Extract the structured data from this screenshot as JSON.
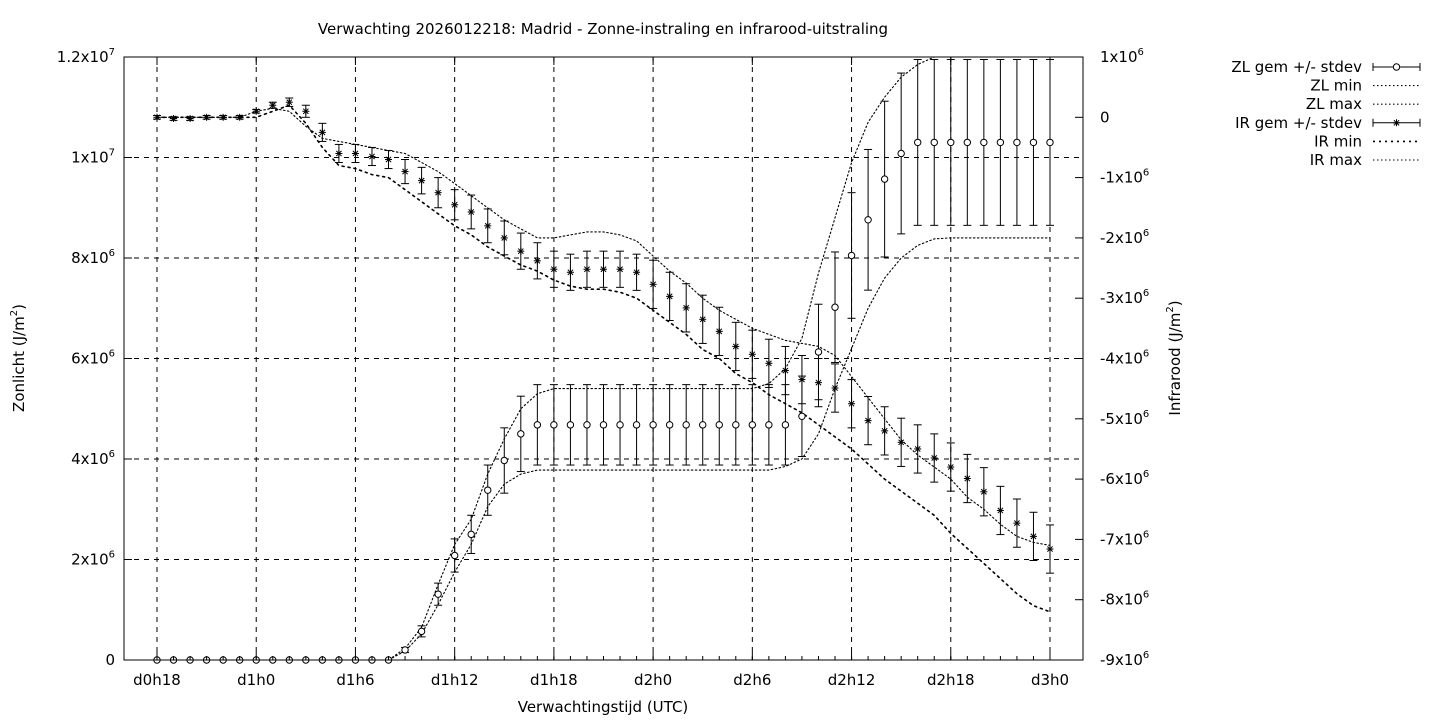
{
  "chart_data": {
    "type": "scatter",
    "title": "Verwachting 2026012218: Madrid - Zonne-instraling en infrarood-uitstraling",
    "xlabel": "Verwachtingstijd (UTC)",
    "ylabel_left": "Zonlicht (J/m",
    "ylabel_left_sup": "2",
    "ylabel_left_end": ")",
    "ylabel_right": "Infrarood (J/m",
    "ylabel_right_sup": "2",
    "ylabel_right_end": ")",
    "grid": true,
    "legend_position": "outside-top-right",
    "x_hours": [
      18,
      19,
      20,
      21,
      22,
      23,
      24,
      25,
      26,
      27,
      28,
      29,
      30,
      31,
      32,
      33,
      34,
      35,
      36,
      37,
      38,
      39,
      40,
      41,
      42,
      43,
      44,
      45,
      46,
      47,
      48,
      49,
      50,
      51,
      52,
      53,
      54,
      55,
      56,
      57,
      58,
      59,
      60,
      61,
      62,
      63,
      64,
      65,
      66,
      67,
      68,
      69,
      70,
      71,
      72
    ],
    "xlim_hours": [
      16,
      74
    ],
    "x_ticks": [
      {
        "h": 18,
        "label": "d0h18"
      },
      {
        "h": 24,
        "label": "d1h0"
      },
      {
        "h": 30,
        "label": "d1h6"
      },
      {
        "h": 36,
        "label": "d1h12"
      },
      {
        "h": 42,
        "label": "d1h18"
      },
      {
        "h": 48,
        "label": "d2h0"
      },
      {
        "h": 54,
        "label": "d2h6"
      },
      {
        "h": 60,
        "label": "d2h12"
      },
      {
        "h": 66,
        "label": "d2h18"
      },
      {
        "h": 72,
        "label": "d3h0"
      }
    ],
    "y_left": {
      "lim": [
        0,
        12000000
      ],
      "ticks": [
        {
          "v": 0,
          "base": "0",
          "exp": ""
        },
        {
          "v": 2000000,
          "base": "2x10",
          "exp": "6"
        },
        {
          "v": 4000000,
          "base": "4x10",
          "exp": "6"
        },
        {
          "v": 6000000,
          "base": "6x10",
          "exp": "6"
        },
        {
          "v": 8000000,
          "base": "8x10",
          "exp": "6"
        },
        {
          "v": 10000000,
          "base": "1x10",
          "exp": "7"
        },
        {
          "v": 12000000,
          "base": "1.2x10",
          "exp": "7"
        }
      ]
    },
    "y_right": {
      "lim": [
        -9000000,
        1000000
      ],
      "ticks": [
        {
          "v": 1000000,
          "base": "1x10",
          "exp": "6"
        },
        {
          "v": 0,
          "base": "0",
          "exp": ""
        },
        {
          "v": -1000000,
          "base": "-1x10",
          "exp": "6"
        },
        {
          "v": -2000000,
          "base": "-2x10",
          "exp": "6"
        },
        {
          "v": -3000000,
          "base": "-3x10",
          "exp": "6"
        },
        {
          "v": -4000000,
          "base": "-4x10",
          "exp": "6"
        },
        {
          "v": -5000000,
          "base": "-5x10",
          "exp": "6"
        },
        {
          "v": -6000000,
          "base": "-6x10",
          "exp": "6"
        },
        {
          "v": -7000000,
          "base": "-7x10",
          "exp": "6"
        },
        {
          "v": -8000000,
          "base": "-8x10",
          "exp": "6"
        },
        {
          "v": -9000000,
          "base": "-9x10",
          "exp": "6"
        }
      ]
    },
    "legend": [
      {
        "key": "zl_mean",
        "label": "ZL gem +/- stdev"
      },
      {
        "key": "zl_min",
        "label": "ZL min"
      },
      {
        "key": "zl_max",
        "label": "ZL max"
      },
      {
        "key": "ir_mean",
        "label": "IR gem +/- stdev"
      },
      {
        "key": "ir_min",
        "label": "IR min"
      },
      {
        "key": "ir_max",
        "label": "IR max"
      }
    ],
    "series": [
      {
        "name": "ZL gem +/- stdev",
        "axis": "left",
        "marker": "circle",
        "values": [
          0,
          0,
          0,
          0,
          0,
          0,
          0,
          0,
          0,
          0,
          0,
          0,
          0,
          0,
          0,
          200000,
          570000,
          1310000,
          2080000,
          2500000,
          3380000,
          3970000,
          4500000,
          4680000,
          4680000,
          4680000,
          4680000,
          4680000,
          4680000,
          4680000,
          4680000,
          4680000,
          4680000,
          4680000,
          4680000,
          4680000,
          4680000,
          4680000,
          4680000,
          4850000,
          6130000,
          7020000,
          8050000,
          8760000,
          9570000,
          10080000,
          10300000,
          10300000,
          10300000,
          10300000,
          10300000,
          10300000,
          10300000,
          10300000,
          10300000
        ],
        "stdev": [
          0,
          0,
          0,
          0,
          0,
          0,
          0,
          0,
          0,
          0,
          0,
          0,
          0,
          0,
          0,
          50000,
          110000,
          220000,
          330000,
          380000,
          500000,
          650000,
          750000,
          800000,
          800000,
          800000,
          800000,
          800000,
          800000,
          800000,
          800000,
          800000,
          800000,
          800000,
          800000,
          800000,
          800000,
          800000,
          800000,
          800000,
          950000,
          1100000,
          1250000,
          1400000,
          1550000,
          1600000,
          1650000,
          1650000,
          1650000,
          1650000,
          1650000,
          1650000,
          1650000,
          1650000,
          1650000
        ]
      },
      {
        "name": "ZL min",
        "axis": "left",
        "values": [
          0,
          0,
          0,
          0,
          0,
          0,
          0,
          0,
          0,
          0,
          0,
          0,
          0,
          0,
          0,
          180000,
          520000,
          1100000,
          1750000,
          2300000,
          3050000,
          3500000,
          3700000,
          3780000,
          3780000,
          3780000,
          3780000,
          3780000,
          3780000,
          3780000,
          3780000,
          3780000,
          3780000,
          3780000,
          3780000,
          3780000,
          3780000,
          3780000,
          3850000,
          4000000,
          4500000,
          5400000,
          6200000,
          7000000,
          7600000,
          8000000,
          8250000,
          8380000,
          8400000,
          8400000,
          8400000,
          8400000,
          8400000,
          8400000,
          8400000
        ]
      },
      {
        "name": "ZL max",
        "axis": "left",
        "values": [
          0,
          0,
          0,
          0,
          0,
          0,
          0,
          0,
          0,
          0,
          0,
          0,
          0,
          0,
          0,
          230000,
          650000,
          1500000,
          2300000,
          2800000,
          3700000,
          4400000,
          5000000,
          5300000,
          5400000,
          5400000,
          5400000,
          5400000,
          5400000,
          5400000,
          5400000,
          5400000,
          5400000,
          5400000,
          5400000,
          5400000,
          5400000,
          5500000,
          5800000,
          6400000,
          7700000,
          8800000,
          9900000,
          10700000,
          11200000,
          11600000,
          11850000,
          12000000,
          12000000,
          12000000,
          12000000,
          12000000,
          12000000,
          12000000,
          12000000
        ]
      },
      {
        "name": "IR gem +/- stdev",
        "axis": "right",
        "marker": "star",
        "values": [
          0,
          -20000,
          -20000,
          0,
          0,
          0,
          100000,
          200000,
          250000,
          100000,
          -250000,
          -600000,
          -600000,
          -650000,
          -700000,
          -900000,
          -1050000,
          -1250000,
          -1450000,
          -1570000,
          -1800000,
          -2000000,
          -2220000,
          -2380000,
          -2520000,
          -2570000,
          -2520000,
          -2520000,
          -2520000,
          -2570000,
          -2770000,
          -2970000,
          -3160000,
          -3350000,
          -3550000,
          -3800000,
          -3930000,
          -4080000,
          -4200000,
          -4350000,
          -4400000,
          -4490000,
          -4750000,
          -5030000,
          -5200000,
          -5390000,
          -5500000,
          -5650000,
          -5800000,
          -5990000,
          -6210000,
          -6520000,
          -6730000,
          -6950000,
          -7160000
        ],
        "stdev": [
          30000,
          30000,
          30000,
          30000,
          30000,
          30000,
          30000,
          50000,
          70000,
          100000,
          150000,
          150000,
          150000,
          150000,
          150000,
          200000,
          220000,
          250000,
          250000,
          280000,
          280000,
          280000,
          300000,
          300000,
          300000,
          300000,
          300000,
          300000,
          300000,
          300000,
          400000,
          400000,
          400000,
          400000,
          400000,
          400000,
          400000,
          400000,
          400000,
          400000,
          400000,
          400000,
          400000,
          400000,
          400000,
          400000,
          400000,
          400000,
          400000,
          400000,
          400000,
          400000,
          400000,
          400000,
          400000
        ]
      },
      {
        "name": "IR min",
        "axis": "right",
        "values": [
          0,
          0,
          0,
          0,
          0,
          0,
          0,
          100000,
          200000,
          -100000,
          -500000,
          -800000,
          -850000,
          -950000,
          -1000000,
          -1200000,
          -1400000,
          -1600000,
          -1800000,
          -1950000,
          -2150000,
          -2300000,
          -2450000,
          -2550000,
          -2700000,
          -2800000,
          -2850000,
          -2850000,
          -2900000,
          -3000000,
          -3200000,
          -3400000,
          -3600000,
          -3850000,
          -4000000,
          -4250000,
          -4400000,
          -4600000,
          -4750000,
          -4900000,
          -5100000,
          -5300000,
          -5500000,
          -5750000,
          -6000000,
          -6200000,
          -6400000,
          -6600000,
          -6900000,
          -7150000,
          -7400000,
          -7650000,
          -7900000,
          -8100000,
          -8200000
        ]
      },
      {
        "name": "IR max",
        "axis": "right",
        "values": [
          0,
          0,
          0,
          0,
          0,
          0,
          100000,
          150000,
          100000,
          -150000,
          -350000,
          -400000,
          -450000,
          -500000,
          -550000,
          -600000,
          -750000,
          -900000,
          -1100000,
          -1300000,
          -1500000,
          -1700000,
          -1850000,
          -2000000,
          -2000000,
          -1950000,
          -1900000,
          -1900000,
          -1950000,
          -2050000,
          -2300000,
          -2550000,
          -2750000,
          -3000000,
          -3200000,
          -3350000,
          -3500000,
          -3600000,
          -3700000,
          -3750000,
          -3800000,
          -3950000,
          -4300000,
          -4650000,
          -5000000,
          -5350000,
          -5600000,
          -5800000,
          -6000000,
          -6300000,
          -6500000,
          -6750000,
          -6950000,
          -7050000,
          -7100000
        ]
      }
    ]
  }
}
